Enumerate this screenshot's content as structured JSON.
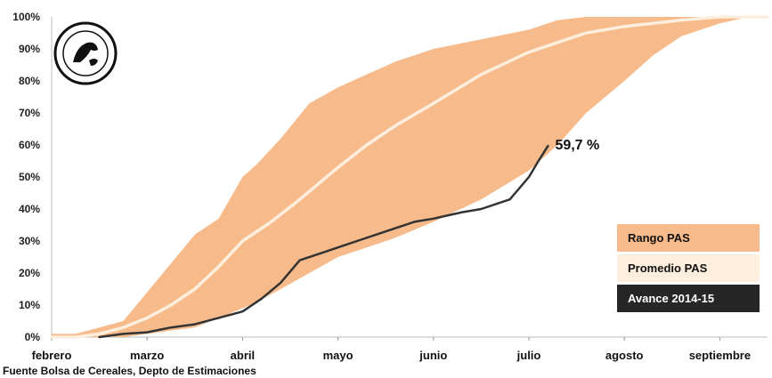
{
  "chart_data": {
    "type": "area",
    "y_ticks": [
      "100%",
      "90%",
      "80%",
      "70%",
      "60%",
      "50%",
      "40%",
      "30%",
      "20%",
      "10%",
      "0%"
    ],
    "x_ticks": [
      "febrero",
      "marzo",
      "abril",
      "mayo",
      "junio",
      "julio",
      "agosto",
      "septiembre"
    ],
    "ylim": [
      0,
      100
    ],
    "xlim": [
      0,
      7.5
    ],
    "series": [
      {
        "name": "Rango PAS",
        "type": "band",
        "x": [
          0,
          0.25,
          0.5,
          0.75,
          1,
          1.25,
          1.5,
          1.75,
          2,
          2.15,
          2.4,
          2.7,
          3,
          3.3,
          3.6,
          4,
          4.5,
          5,
          5.3,
          5.6,
          6,
          6.3,
          6.6,
          7,
          7.3,
          7.5
        ],
        "upper": [
          1,
          1,
          3,
          5,
          14,
          23,
          32,
          37,
          50,
          54,
          62,
          73,
          78,
          82,
          86,
          90,
          93,
          96,
          99,
          100,
          100,
          100,
          100,
          100,
          100,
          100
        ],
        "lower": [
          0,
          0,
          0,
          0,
          1,
          2,
          3,
          6,
          9,
          11,
          15,
          20,
          25,
          28,
          31,
          36,
          43,
          52,
          60,
          70,
          80,
          88,
          94,
          98,
          100,
          100
        ],
        "color": "#f7bb8b"
      },
      {
        "name": "Promedio PAS",
        "type": "line",
        "x": [
          0,
          0.25,
          0.5,
          0.75,
          1,
          1.25,
          1.5,
          1.75,
          2,
          2.3,
          2.6,
          3,
          3.3,
          3.6,
          4,
          4.5,
          5,
          5.3,
          5.6,
          6,
          6.3,
          6.6,
          7,
          7.3,
          7.5
        ],
        "y": [
          0,
          0,
          1,
          3,
          6,
          10,
          15,
          22,
          30,
          36,
          43,
          53,
          60,
          66,
          73,
          82,
          89,
          92,
          95,
          97,
          98,
          99,
          100,
          100,
          100
        ],
        "color": "#fdeedd"
      },
      {
        "name": "Avance 2014-15",
        "type": "line",
        "x": [
          0.5,
          0.75,
          1,
          1.25,
          1.5,
          1.75,
          2,
          2.2,
          2.4,
          2.6,
          2.8,
          3,
          3.2,
          3.5,
          3.8,
          4,
          4.3,
          4.5,
          4.8,
          5,
          5.1,
          5.2
        ],
        "y": [
          0,
          1,
          1.5,
          3,
          4,
          6,
          8,
          12,
          17,
          24,
          26,
          28,
          30,
          33,
          36,
          37,
          39,
          40,
          43,
          50,
          55,
          59.7
        ],
        "color": "#333333"
      }
    ],
    "annotation": "59,7 %",
    "legend_labels": [
      "Rango PAS",
      "Promedio PAS",
      "Avance 2014-15"
    ],
    "legend_position": "right"
  },
  "source": "Fuente Bolsa de Cereales, Depto de Estimaciones"
}
